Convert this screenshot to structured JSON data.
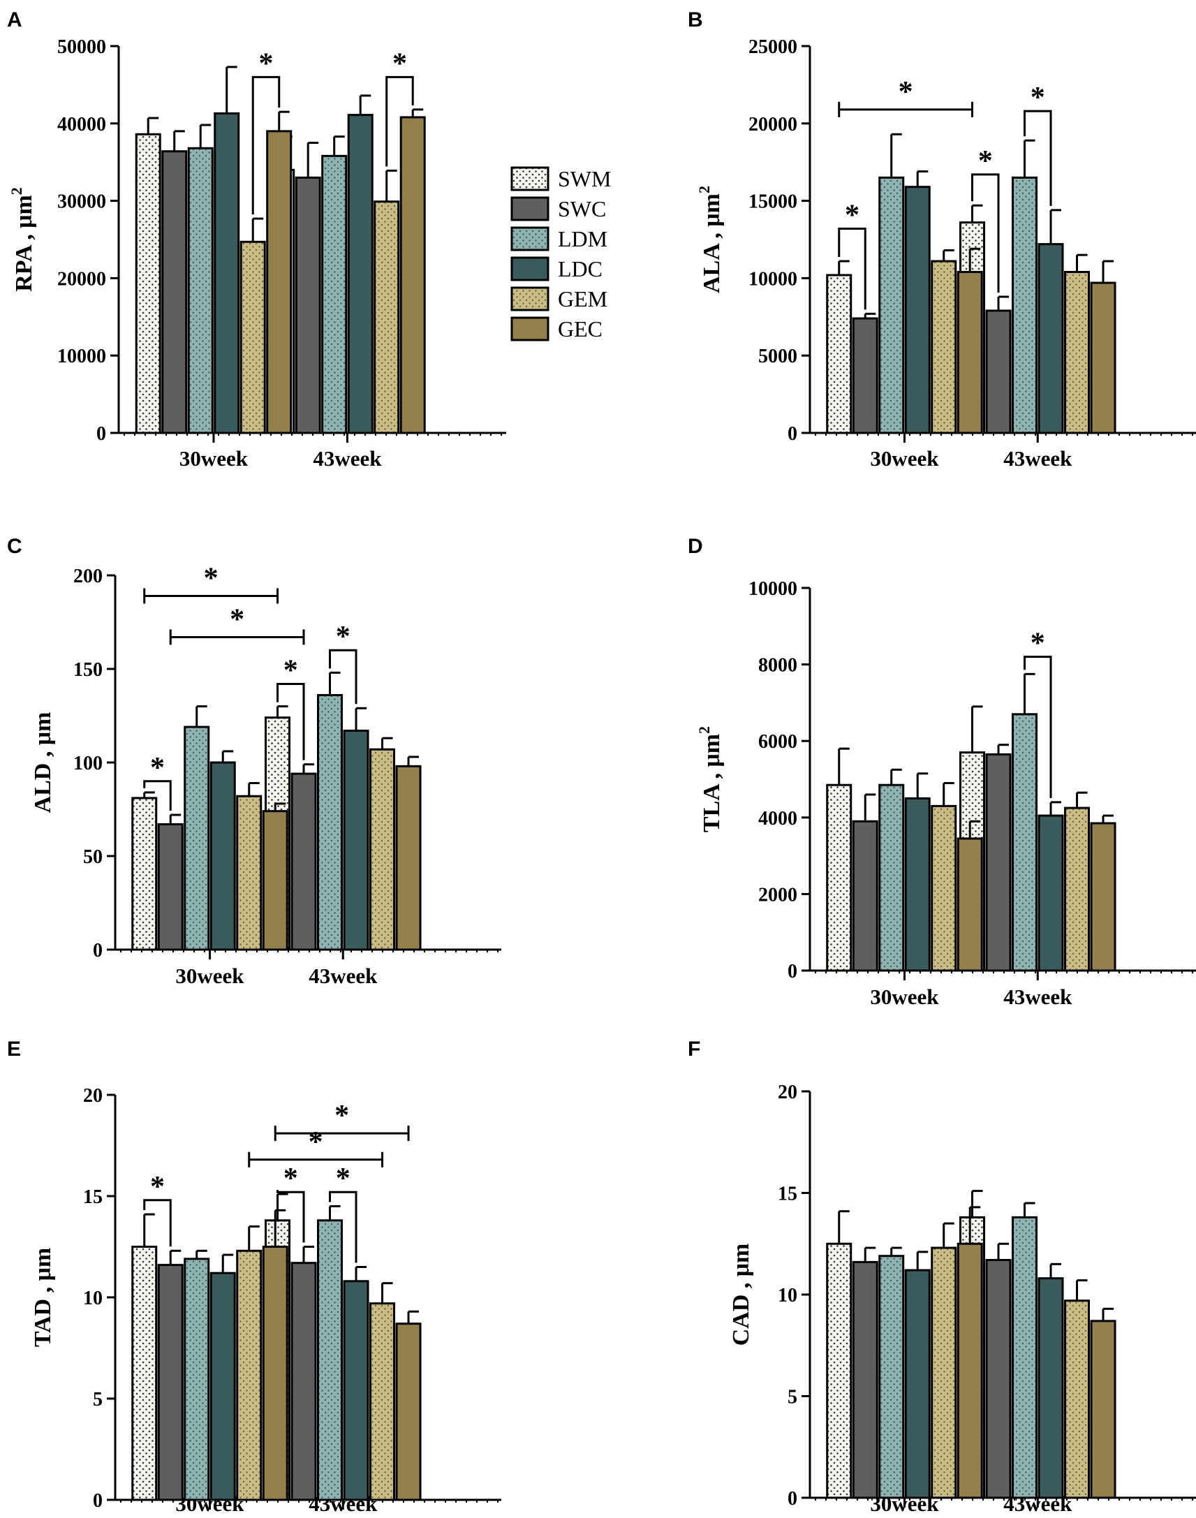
{
  "colors": {
    "SWM": "#f4f4ee",
    "SWC": "#5f5f5f",
    "LDM": "#8fb3b1",
    "LDC": "#3a5b5b",
    "GEM": "#c9bd85",
    "GEC": "#94804a",
    "axis": "#000000"
  },
  "legend": [
    {
      "label": "SWM",
      "pattern": "dots",
      "color": "#f4f4ee"
    },
    {
      "label": "SWC",
      "pattern": "solid",
      "color": "#5f5f5f"
    },
    {
      "label": "LDM",
      "pattern": "dots",
      "color": "#8fb3b1"
    },
    {
      "label": "LDC",
      "pattern": "solid",
      "color": "#3a5b5b"
    },
    {
      "label": "GEM",
      "pattern": "dots",
      "color": "#c9bd85"
    },
    {
      "label": "GEC",
      "pattern": "solid",
      "color": "#94804a"
    }
  ],
  "chart_data": [
    {
      "panel": "A",
      "type": "bar",
      "ylabel": "RPA , μm",
      "ylabel_sup": "2",
      "ylim": [
        0,
        50000
      ],
      "yticks": [
        0,
        10000,
        20000,
        30000,
        40000,
        50000
      ],
      "categories": [
        "30week",
        "43week"
      ],
      "series": [
        {
          "name": "SWM",
          "values": [
            38600,
            34000
          ],
          "errors": [
            2100,
            4300
          ]
        },
        {
          "name": "SWC",
          "values": [
            36400,
            33000
          ],
          "errors": [
            2600,
            4500
          ]
        },
        {
          "name": "LDM",
          "values": [
            36800,
            35800
          ],
          "errors": [
            3000,
            2500
          ]
        },
        {
          "name": "LDC",
          "values": [
            41300,
            41100
          ],
          "errors": [
            6000,
            2500
          ]
        },
        {
          "name": "GEM",
          "values": [
            24700,
            29900
          ],
          "errors": [
            3000,
            4000
          ]
        },
        {
          "name": "GEC",
          "values": [
            39000,
            40800
          ],
          "errors": [
            2500,
            1000
          ]
        }
      ],
      "significance": [
        {
          "label": "*",
          "cat": 0,
          "from": 4,
          "to": 5,
          "y": 46000,
          "style": "bracket"
        },
        {
          "label": "*",
          "cat": 1,
          "from": 4,
          "to": 5,
          "y": 46000,
          "style": "bracket"
        }
      ]
    },
    {
      "panel": "B",
      "type": "bar",
      "ylabel": "ALA , μm",
      "ylabel_sup": "2",
      "ylim": [
        0,
        25000
      ],
      "yticks": [
        0,
        5000,
        10000,
        15000,
        20000,
        25000
      ],
      "categories": [
        "30week",
        "43week"
      ],
      "series": [
        {
          "name": "SWM",
          "values": [
            10200,
            13600
          ],
          "errors": [
            900,
            1100
          ]
        },
        {
          "name": "SWC",
          "values": [
            7400,
            7900
          ],
          "errors": [
            300,
            900
          ]
        },
        {
          "name": "LDM",
          "values": [
            16500,
            16500
          ],
          "errors": [
            2800,
            2400
          ]
        },
        {
          "name": "LDC",
          "values": [
            15900,
            12200
          ],
          "errors": [
            1000,
            2200
          ]
        },
        {
          "name": "GEM",
          "values": [
            11100,
            10400
          ],
          "errors": [
            700,
            1100
          ]
        },
        {
          "name": "GEC",
          "values": [
            10400,
            9700
          ],
          "errors": [
            1500,
            1400
          ]
        }
      ],
      "significance": [
        {
          "label": "*",
          "cat": 0,
          "from": 0,
          "to": 1,
          "y": 13200,
          "style": "bracket"
        },
        {
          "label": "*",
          "cat": 1,
          "from": 0,
          "to": 1,
          "y": 16700,
          "style": "bracket"
        },
        {
          "label": "*",
          "cat": 1,
          "from": 2,
          "to": 3,
          "y": 20800,
          "style": "bracket"
        },
        {
          "label": "*",
          "from_cat": 0,
          "from": 0,
          "to_cat": 1,
          "to": 0,
          "y": 20900,
          "style": "line"
        }
      ]
    },
    {
      "panel": "C",
      "type": "bar",
      "ylabel": "ALD , μm",
      "ylabel_sup": "",
      "ylim": [
        0,
        200
      ],
      "yticks": [
        0,
        50,
        100,
        150,
        200
      ],
      "categories": [
        "30week",
        "43week"
      ],
      "series": [
        {
          "name": "SWM",
          "values": [
            81,
            124
          ],
          "errors": [
            3,
            6
          ]
        },
        {
          "name": "SWC",
          "values": [
            67,
            94
          ],
          "errors": [
            5,
            5
          ]
        },
        {
          "name": "LDM",
          "values": [
            119,
            136
          ],
          "errors": [
            11,
            12
          ]
        },
        {
          "name": "LDC",
          "values": [
            100,
            117
          ],
          "errors": [
            6,
            12
          ]
        },
        {
          "name": "GEM",
          "values": [
            82,
            107
          ],
          "errors": [
            7,
            6
          ]
        },
        {
          "name": "GEC",
          "values": [
            74,
            98
          ],
          "errors": [
            4,
            5
          ]
        }
      ],
      "significance": [
        {
          "label": "*",
          "cat": 0,
          "from": 0,
          "to": 1,
          "y": 90,
          "style": "bracket"
        },
        {
          "label": "*",
          "cat": 1,
          "from": 0,
          "to": 1,
          "y": 142,
          "style": "bracket"
        },
        {
          "label": "*",
          "cat": 1,
          "from": 2,
          "to": 3,
          "y": 160,
          "style": "bracket"
        },
        {
          "label": "*",
          "from_cat": 0,
          "from": 0,
          "to_cat": 1,
          "to": 0,
          "y": 189,
          "style": "line"
        },
        {
          "label": "*",
          "from_cat": 0,
          "from": 1,
          "to_cat": 1,
          "to": 1,
          "y": 167,
          "style": "line"
        }
      ]
    },
    {
      "panel": "D",
      "type": "bar",
      "ylabel": "TLA , μm",
      "ylabel_sup": "2",
      "ylim": [
        0,
        10000
      ],
      "yticks": [
        0,
        2000,
        4000,
        6000,
        8000,
        10000
      ],
      "categories": [
        "30week",
        "43week"
      ],
      "series": [
        {
          "name": "SWM",
          "values": [
            4850,
            5700
          ],
          "errors": [
            950,
            1200
          ]
        },
        {
          "name": "SWC",
          "values": [
            3900,
            5650
          ],
          "errors": [
            700,
            250
          ]
        },
        {
          "name": "LDM",
          "values": [
            4850,
            6700
          ],
          "errors": [
            400,
            1050
          ]
        },
        {
          "name": "LDC",
          "values": [
            4500,
            4050
          ],
          "errors": [
            650,
            350
          ]
        },
        {
          "name": "GEM",
          "values": [
            4300,
            4250
          ],
          "errors": [
            600,
            400
          ]
        },
        {
          "name": "GEC",
          "values": [
            3450,
            3850
          ],
          "errors": [
            450,
            200
          ]
        }
      ],
      "significance": [
        {
          "label": "*",
          "cat": 1,
          "from": 2,
          "to": 3,
          "y": 8200,
          "style": "bracket"
        }
      ]
    },
    {
      "panel": "E",
      "type": "bar",
      "ylabel": "TAD , μm",
      "ylabel_sup": "",
      "ylim": [
        0,
        20
      ],
      "yticks": [
        0,
        5,
        10,
        15,
        20
      ],
      "categories": [
        "30week",
        "43week"
      ],
      "series": [
        {
          "name": "SWM",
          "values": [
            12.5,
            13.8
          ],
          "errors": [
            1.6,
            1.3
          ]
        },
        {
          "name": "SWC",
          "values": [
            11.6,
            11.7
          ],
          "errors": [
            0.7,
            0.8
          ]
        },
        {
          "name": "LDM",
          "values": [
            11.9,
            13.8
          ],
          "errors": [
            0.4,
            0.7
          ]
        },
        {
          "name": "LDC",
          "values": [
            11.2,
            10.8
          ],
          "errors": [
            0.9,
            0.7
          ]
        },
        {
          "name": "GEM",
          "values": [
            12.3,
            9.7
          ],
          "errors": [
            1.2,
            1.0
          ]
        },
        {
          "name": "GEC",
          "values": [
            12.5,
            8.7
          ],
          "errors": [
            1.8,
            0.6
          ]
        }
      ],
      "significance": [
        {
          "label": "*",
          "cat": 0,
          "from": 0,
          "to": 1,
          "y": 14.8,
          "style": "bracket"
        },
        {
          "label": "*",
          "cat": 1,
          "from": 0,
          "to": 1,
          "y": 15.2,
          "style": "bracket"
        },
        {
          "label": "*",
          "cat": 1,
          "from": 2,
          "to": 3,
          "y": 15.2,
          "style": "bracket"
        },
        {
          "label": "*",
          "from_cat": 0,
          "from": 5,
          "to_cat": 1,
          "to": 5,
          "y": 18.1,
          "style": "line"
        },
        {
          "label": "*",
          "from_cat": 0,
          "from": 4,
          "to_cat": 1,
          "to": 4,
          "y": 16.8,
          "style": "line"
        }
      ]
    },
    {
      "panel": "F",
      "type": "bar",
      "ylabel": "CAD , μm",
      "ylabel_sup": "",
      "ylim": [
        0,
        20
      ],
      "yticks": [
        0,
        5,
        10,
        15,
        20
      ],
      "categories": [
        "30week",
        "43week"
      ],
      "series": [
        {
          "name": "SWM",
          "values": [
            12.5,
            13.8
          ],
          "errors": [
            1.6,
            1.3
          ]
        },
        {
          "name": "SWC",
          "values": [
            11.6,
            11.7
          ],
          "errors": [
            0.7,
            0.8
          ]
        },
        {
          "name": "LDM",
          "values": [
            11.9,
            13.8
          ],
          "errors": [
            0.4,
            0.7
          ]
        },
        {
          "name": "LDC",
          "values": [
            11.2,
            10.8
          ],
          "errors": [
            0.9,
            0.7
          ]
        },
        {
          "name": "GEM",
          "values": [
            12.3,
            9.7
          ],
          "errors": [
            1.2,
            1.0
          ]
        },
        {
          "name": "GEC",
          "values": [
            12.5,
            8.7
          ],
          "errors": [
            1.8,
            0.6
          ]
        }
      ],
      "significance": []
    }
  ]
}
